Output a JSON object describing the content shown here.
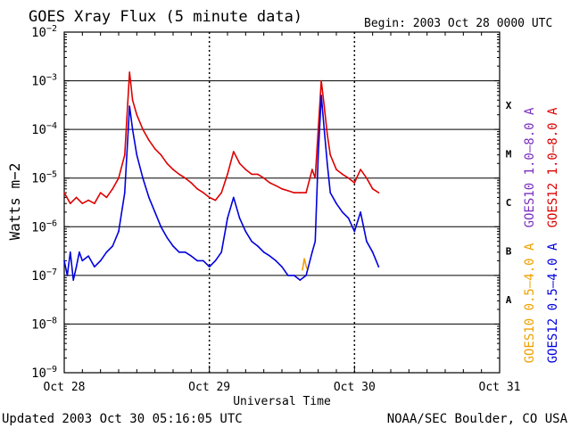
{
  "header": {
    "title": "GOES Xray Flux (5 minute data)",
    "begin": "Begin:  2003 Oct 28 0000 UTC"
  },
  "footer": {
    "updated": "Updated 2003 Oct 30 05:16:05 UTC",
    "credit": "NOAA/SEC Boulder, CO USA"
  },
  "colors": {
    "goes10_long": "#7b2fbe",
    "goes12_long": "#dd0000",
    "goes10_short": "#f0a000",
    "goes12_short": "#0000dd",
    "axis": "#000000"
  },
  "chart_data": {
    "type": "line",
    "title": "GOES Xray Flux (5 minute data)",
    "xlabel": "Universal Time",
    "ylabel": "Watts m−2",
    "yscale": "log",
    "ylim": [
      1e-09,
      0.01
    ],
    "xlim": [
      0,
      72
    ],
    "x_units": "hours since 2003 Oct 28 0000 UTC",
    "x_ticks": [
      {
        "x": 0,
        "label": "Oct 28"
      },
      {
        "x": 24,
        "label": "Oct 29"
      },
      {
        "x": 48,
        "label": "Oct 30"
      },
      {
        "x": 72,
        "label": "Oct 31"
      }
    ],
    "y_ticks": [
      {
        "exp": -9,
        "base": "10",
        "sup": "−9"
      },
      {
        "exp": -8,
        "base": "10",
        "sup": "−8"
      },
      {
        "exp": -7,
        "base": "10",
        "sup": "−7"
      },
      {
        "exp": -6,
        "base": "10",
        "sup": "−6"
      },
      {
        "exp": -5,
        "base": "10",
        "sup": "−5"
      },
      {
        "exp": -4,
        "base": "10",
        "sup": "−4"
      },
      {
        "exp": -3,
        "base": "10",
        "sup": "−3"
      },
      {
        "exp": -2,
        "base": "10",
        "sup": "−2"
      }
    ],
    "flare_classes": [
      {
        "label": "A",
        "ymid": 3.16e-08
      },
      {
        "label": "B",
        "ymid": 3.16e-07
      },
      {
        "label": "C",
        "ymid": 3.16e-06
      },
      {
        "label": "M",
        "ymid": 3.16e-05
      },
      {
        "label": "X",
        "ymid": 0.000316
      }
    ],
    "class_gridlines": [
      1e-08,
      1e-07,
      1e-06,
      1e-05,
      0.0001,
      0.001
    ],
    "legend": [
      {
        "name": "GOES10 1.0–8.0 A",
        "color": "#7b2fbe",
        "group": "long"
      },
      {
        "name": "GOES12 1.0–8.0 A",
        "color": "#dd0000",
        "group": "long"
      },
      {
        "name": "GOES10 0.5–4.0 A",
        "color": "#f0a000",
        "group": "short"
      },
      {
        "name": "GOES12 0.5–4.0 A",
        "color": "#0000dd",
        "group": "short"
      }
    ],
    "series": [
      {
        "name": "GOES12 1.0-8.0 A",
        "color": "#dd0000",
        "points": [
          [
            0,
            5e-06
          ],
          [
            1,
            3e-06
          ],
          [
            2,
            4e-06
          ],
          [
            3,
            3e-06
          ],
          [
            4,
            3.5e-06
          ],
          [
            5,
            3e-06
          ],
          [
            6,
            5e-06
          ],
          [
            7,
            4e-06
          ],
          [
            8,
            6e-06
          ],
          [
            9,
            1e-05
          ],
          [
            10,
            3e-05
          ],
          [
            10.8,
            0.0015
          ],
          [
            11.3,
            0.0004
          ],
          [
            12,
            0.0002
          ],
          [
            13,
            0.0001
          ],
          [
            14,
            6e-05
          ],
          [
            15,
            4e-05
          ],
          [
            16,
            3e-05
          ],
          [
            17,
            2e-05
          ],
          [
            18,
            1.5e-05
          ],
          [
            19,
            1.2e-05
          ],
          [
            20,
            1e-05
          ],
          [
            21,
            8e-06
          ],
          [
            22,
            6e-06
          ],
          [
            23,
            5e-06
          ],
          [
            24,
            4e-06
          ],
          [
            25,
            3.5e-06
          ],
          [
            26,
            5e-06
          ],
          [
            27,
            1.2e-05
          ],
          [
            28,
            3.5e-05
          ],
          [
            29,
            2e-05
          ],
          [
            30,
            1.5e-05
          ],
          [
            31,
            1.2e-05
          ],
          [
            32,
            1.2e-05
          ],
          [
            33,
            1e-05
          ],
          [
            34,
            8e-06
          ],
          [
            35,
            7e-06
          ],
          [
            36,
            6e-06
          ],
          [
            37,
            5.5e-06
          ],
          [
            38,
            5e-06
          ],
          [
            39,
            5e-06
          ],
          [
            40,
            5e-06
          ],
          [
            41,
            1.5e-05
          ],
          [
            41.5,
            1e-05
          ],
          [
            42,
            0.0001
          ],
          [
            42.5,
            0.001
          ],
          [
            43,
            0.0003
          ],
          [
            43.5,
            8e-05
          ],
          [
            44,
            3e-05
          ],
          [
            45,
            1.5e-05
          ],
          [
            46,
            1.2e-05
          ],
          [
            47,
            1e-05
          ],
          [
            48,
            8e-06
          ],
          [
            49,
            1.5e-05
          ],
          [
            50,
            1e-05
          ],
          [
            51,
            6e-06
          ],
          [
            52,
            5e-06
          ]
        ]
      },
      {
        "name": "GOES12 0.5-4.0 A",
        "color": "#0000dd",
        "points": [
          [
            0,
            2e-07
          ],
          [
            0.5,
            1e-07
          ],
          [
            1,
            3e-07
          ],
          [
            1.5,
            8e-08
          ],
          [
            2,
            1.5e-07
          ],
          [
            2.5,
            3e-07
          ],
          [
            3,
            2e-07
          ],
          [
            4,
            2.5e-07
          ],
          [
            5,
            1.5e-07
          ],
          [
            6,
            2e-07
          ],
          [
            7,
            3e-07
          ],
          [
            8,
            4e-07
          ],
          [
            9,
            8e-07
          ],
          [
            10,
            5e-06
          ],
          [
            10.8,
            0.0003
          ],
          [
            11.3,
            0.0001
          ],
          [
            12,
            3e-05
          ],
          [
            13,
            1e-05
          ],
          [
            14,
            4e-06
          ],
          [
            15,
            2e-06
          ],
          [
            16,
            1e-06
          ],
          [
            17,
            6e-07
          ],
          [
            18,
            4e-07
          ],
          [
            19,
            3e-07
          ],
          [
            20,
            3e-07
          ],
          [
            21,
            2.5e-07
          ],
          [
            22,
            2e-07
          ],
          [
            23,
            2e-07
          ],
          [
            24,
            1.5e-07
          ],
          [
            25,
            2e-07
          ],
          [
            26,
            3e-07
          ],
          [
            27,
            1.5e-06
          ],
          [
            28,
            4e-06
          ],
          [
            29,
            1.5e-06
          ],
          [
            30,
            8e-07
          ],
          [
            31,
            5e-07
          ],
          [
            32,
            4e-07
          ],
          [
            33,
            3e-07
          ],
          [
            34,
            2.5e-07
          ],
          [
            35,
            2e-07
          ],
          [
            36,
            1.5e-07
          ],
          [
            37,
            1e-07
          ],
          [
            38,
            1e-07
          ],
          [
            39,
            8e-08
          ],
          [
            40,
            1e-07
          ],
          [
            41,
            3e-07
          ],
          [
            41.5,
            5e-07
          ],
          [
            42,
            3e-05
          ],
          [
            42.5,
            0.0005
          ],
          [
            43,
            0.0001
          ],
          [
            43.5,
            2e-05
          ],
          [
            44,
            5e-06
          ],
          [
            45,
            3e-06
          ],
          [
            46,
            2e-06
          ],
          [
            47,
            1.5e-06
          ],
          [
            48,
            8e-07
          ],
          [
            49,
            2e-06
          ],
          [
            49.5,
            1e-06
          ],
          [
            50,
            5e-07
          ],
          [
            51,
            3e-07
          ],
          [
            52,
            1.5e-07
          ]
        ]
      },
      {
        "name": "GOES10 0.5-4.0 A",
        "color": "#f0a000",
        "points": [
          [
            39.4,
            1.3e-07
          ],
          [
            39.7,
            2.2e-07
          ],
          [
            40.1,
            1.4e-07
          ]
        ]
      }
    ]
  }
}
